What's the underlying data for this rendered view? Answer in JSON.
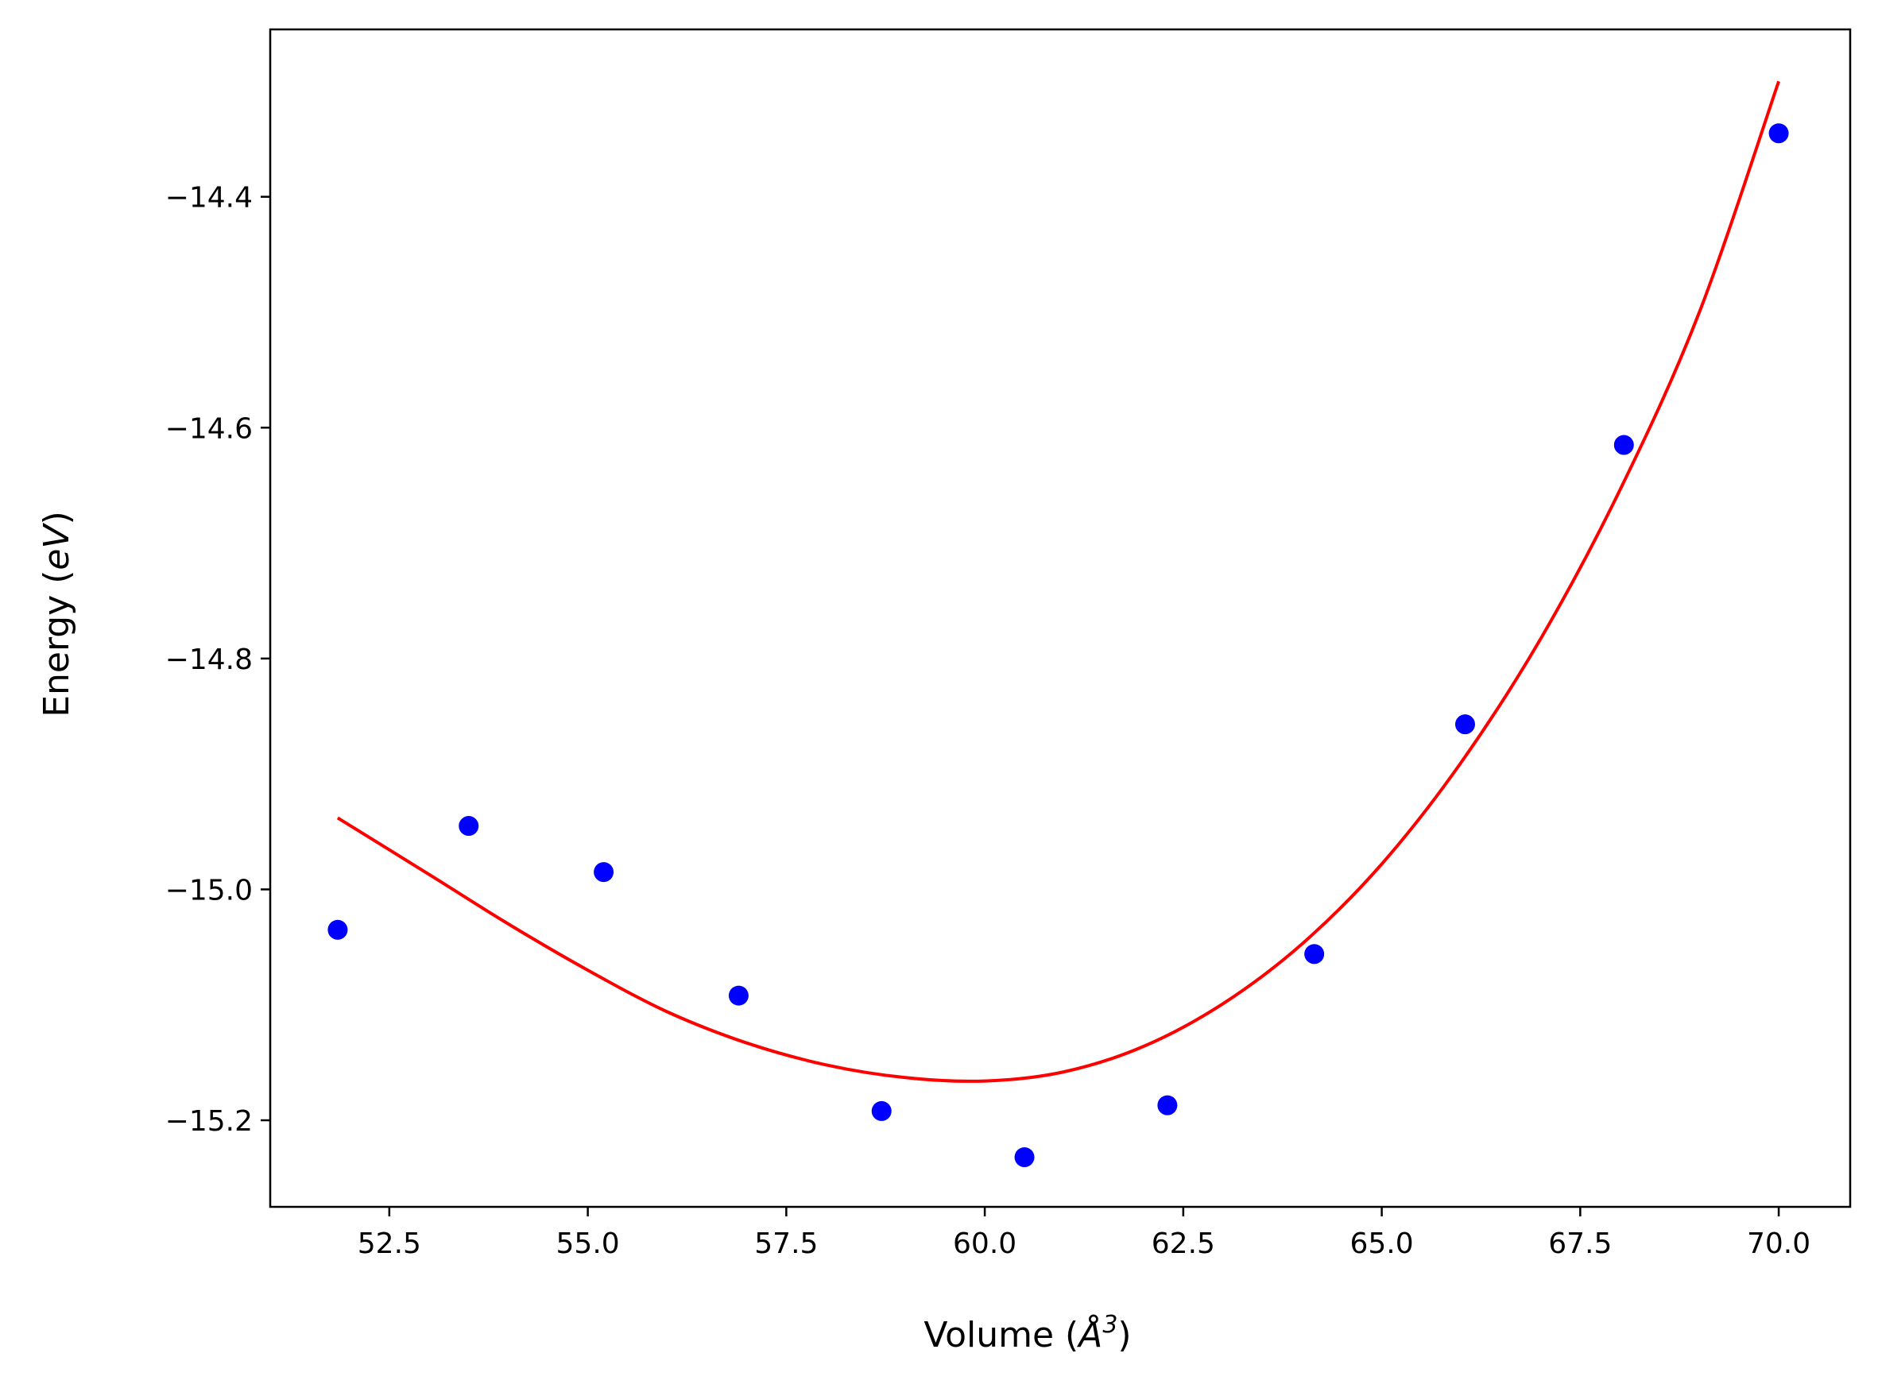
{
  "chart_data": {
    "type": "scatter",
    "xlabel": "Volume (Å³)",
    "ylabel": "Energy (eV)",
    "xlabel_parts": {
      "prefix": "Volume (",
      "symbol": "Å",
      "sup": "3",
      "suffix": ")"
    },
    "ylabel_parts": {
      "prefix": "Energy (",
      "symbol": "eV",
      "suffix": ")"
    },
    "xlim": [
      51.0,
      70.9
    ],
    "ylim": [
      -15.275,
      -14.255
    ],
    "x_ticks": [
      52.5,
      55.0,
      57.5,
      60.0,
      62.5,
      65.0,
      67.5,
      70.0
    ],
    "x_tick_labels": [
      "52.5",
      "55.0",
      "57.5",
      "60.0",
      "62.5",
      "65.0",
      "67.5",
      "70.0"
    ],
    "y_ticks": [
      -15.2,
      -15.0,
      -14.8,
      -14.6,
      -14.4
    ],
    "y_tick_labels": [
      "−15.2",
      "−15.0",
      "−14.8",
      "−14.6",
      "−14.4"
    ],
    "grid": false,
    "colors": {
      "points": "#0000ff",
      "fit": "#ff0000",
      "axes": "#000000"
    },
    "series": [
      {
        "kind": "points",
        "x": [
          51.85,
          53.5,
          55.2,
          56.9,
          58.7,
          60.5,
          62.3,
          64.15,
          66.05,
          68.05,
          70.0
        ],
        "y": [
          -15.035,
          -14.945,
          -14.985,
          -15.092,
          -15.192,
          -15.232,
          -15.187,
          -15.056,
          -14.857,
          -14.615,
          -14.345
        ]
      },
      {
        "kind": "line",
        "x": [
          51.85,
          53.0,
          54.0,
          55.0,
          56.0,
          57.0,
          58.0,
          59.0,
          60.0,
          61.0,
          62.0,
          63.0,
          64.0,
          65.0,
          66.0,
          67.0,
          68.0,
          69.0,
          70.0
        ],
        "y": [
          -14.938,
          -14.987,
          -15.03,
          -15.07,
          -15.106,
          -15.133,
          -15.152,
          -15.163,
          -15.166,
          -15.158,
          -15.136,
          -15.099,
          -15.047,
          -14.978,
          -14.89,
          -14.783,
          -14.654,
          -14.5,
          -14.3
        ]
      }
    ]
  }
}
